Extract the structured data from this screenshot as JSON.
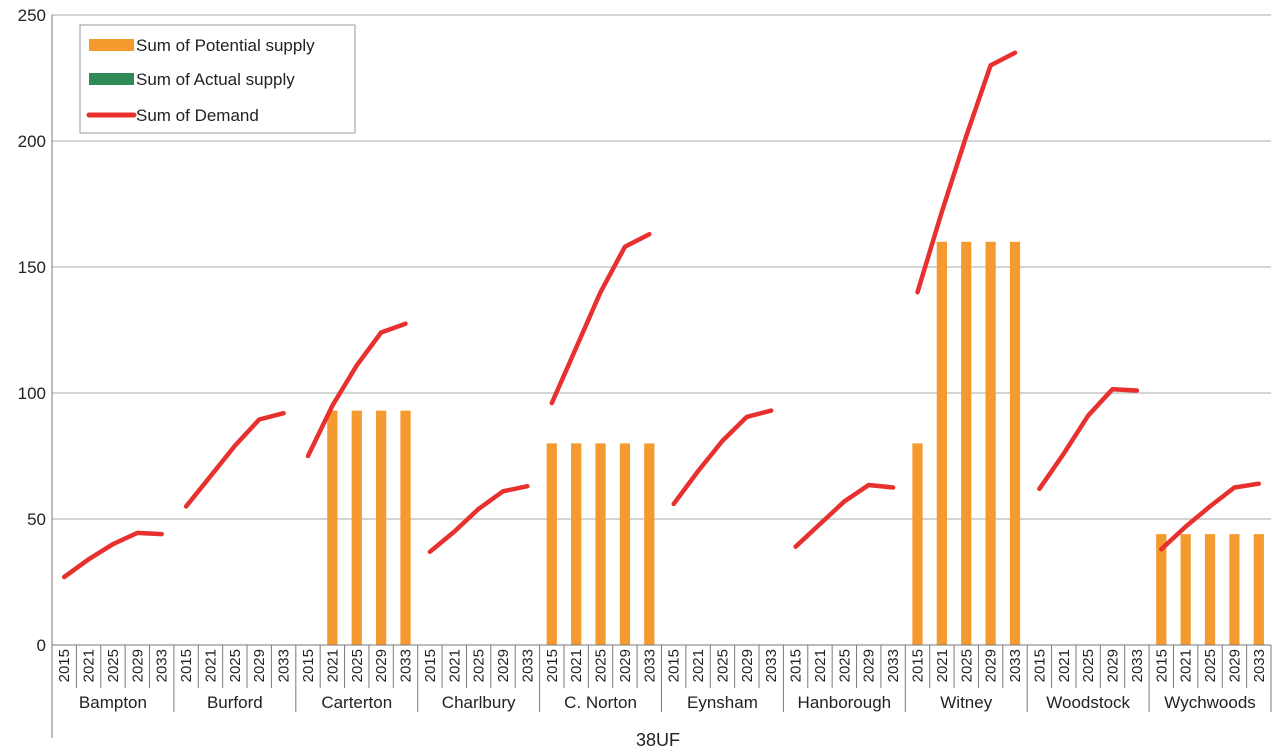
{
  "chart_data": {
    "type": "bar",
    "title": "",
    "xlabel": "38UF",
    "ylabel": "",
    "ylim": [
      0,
      250
    ],
    "yticks": [
      0,
      50,
      100,
      150,
      200,
      250
    ],
    "grid": true,
    "legend_position": "top-left",
    "groups": [
      "Bampton",
      "Burford",
      "Carterton",
      "Charlbury",
      "C. Norton",
      "Eynsham",
      "Hanborough",
      "Witney",
      "Woodstock",
      "Wychwoods"
    ],
    "years": [
      "2015",
      "2021",
      "2025",
      "2029",
      "2033"
    ],
    "series": [
      {
        "name": "Sum of Potential supply",
        "kind": "bar",
        "color": "#F59A2F",
        "values": [
          [
            0,
            0,
            0,
            0,
            0
          ],
          [
            0,
            0,
            0,
            0,
            0
          ],
          [
            0,
            93,
            93,
            93,
            93
          ],
          [
            0,
            0,
            0,
            0,
            0
          ],
          [
            80,
            80,
            80,
            80,
            80
          ],
          [
            0,
            0,
            0,
            0,
            0
          ],
          [
            0,
            0,
            0,
            0,
            0
          ],
          [
            80,
            160,
            160,
            160,
            160
          ],
          [
            0,
            0,
            0,
            0,
            0
          ],
          [
            44,
            44,
            44,
            44,
            44
          ]
        ]
      },
      {
        "name": "Sum of Actual supply",
        "kind": "bar",
        "color": "#2E8B57",
        "values": [
          [
            0,
            0,
            0,
            0,
            0
          ],
          [
            0,
            0,
            0,
            0,
            0
          ],
          [
            0,
            0,
            0,
            0,
            0
          ],
          [
            0,
            0,
            0,
            0,
            0
          ],
          [
            0,
            0,
            0,
            0,
            0
          ],
          [
            0,
            0,
            0,
            0,
            0
          ],
          [
            0,
            0,
            0,
            0,
            0
          ],
          [
            0,
            0,
            0,
            0,
            0
          ],
          [
            0,
            0,
            0,
            0,
            0
          ],
          [
            0,
            0,
            0,
            0,
            0
          ]
        ]
      },
      {
        "name": "Sum of Demand",
        "kind": "line",
        "color": "#E8302F",
        "values": [
          [
            27,
            34,
            40,
            44.5,
            44
          ],
          [
            55,
            67,
            79,
            89.5,
            92
          ],
          [
            75,
            95,
            111,
            124,
            127.5
          ],
          [
            37,
            45,
            54,
            61,
            63
          ],
          [
            96,
            118,
            140,
            158,
            163
          ],
          [
            56,
            69,
            81,
            90.5,
            93
          ],
          [
            39,
            48,
            57,
            63.5,
            62.5
          ],
          [
            140,
            172,
            202,
            230,
            235
          ],
          [
            62,
            76,
            91,
            101.5,
            101
          ],
          [
            38,
            47,
            55,
            62.5,
            64
          ]
        ]
      }
    ]
  }
}
